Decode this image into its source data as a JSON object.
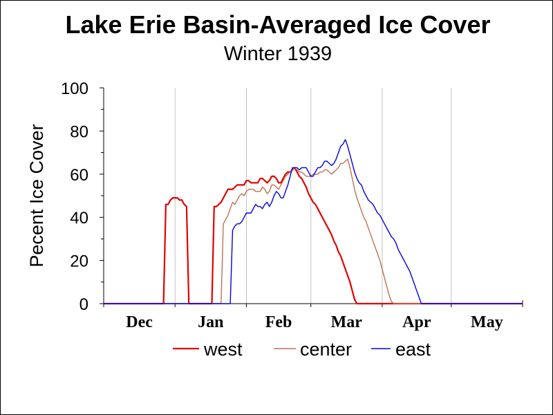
{
  "chart_data": {
    "type": "line",
    "title": "Lake Erie Basin-Averaged Ice Cover",
    "subtitle": "Winter 1939",
    "ylabel": "Pecent Ice Cover",
    "xlabel": "",
    "ylim": [
      0,
      100
    ],
    "yticks": [
      "0",
      "20",
      "40",
      "60",
      "80",
      "100"
    ],
    "months": [
      "Dec",
      "Jan",
      "Feb",
      "Mar",
      "Apr",
      "May"
    ],
    "xlim": [
      0,
      182
    ],
    "grid": "vertical",
    "legend_position": "bottom",
    "series": [
      {
        "name": "west",
        "color": "#e00000",
        "x": [
          0,
          26,
          27,
          28,
          29,
          30,
          31,
          32,
          33,
          34,
          35,
          36,
          37,
          38,
          38.5,
          39,
          40,
          41,
          42,
          43,
          44,
          45,
          46,
          47,
          48,
          49,
          50,
          51,
          52,
          53,
          54,
          55,
          56,
          57,
          58,
          59,
          60,
          61,
          62,
          63,
          64,
          65,
          66,
          67,
          68,
          69,
          70,
          71,
          72,
          73,
          74,
          75,
          76,
          77,
          78,
          79,
          80,
          81,
          82,
          83,
          84,
          85,
          86,
          87,
          88,
          89,
          90,
          91,
          92,
          93,
          94,
          95,
          96,
          97,
          98,
          99,
          100,
          101,
          102,
          103,
          104,
          105,
          106,
          107,
          108,
          109,
          110,
          111,
          112,
          113,
          114,
          115,
          116,
          117,
          118,
          119,
          120,
          121,
          122,
          123,
          124,
          125,
          130,
          150,
          182
        ],
        "y": [
          0,
          0,
          46,
          46,
          48,
          49,
          49,
          49,
          48,
          48,
          46,
          45,
          0,
          0,
          0,
          0,
          0,
          0,
          0,
          0,
          0,
          0,
          0,
          0,
          45,
          45,
          46,
          47,
          49,
          51,
          53,
          53,
          53,
          54,
          55,
          55,
          55,
          55,
          57,
          57,
          56,
          56,
          56,
          56,
          58,
          58,
          57,
          56,
          57,
          59,
          59,
          58,
          56,
          56,
          58,
          60,
          61,
          61,
          62,
          63,
          61,
          59,
          58,
          56,
          54,
          51,
          49,
          47,
          46,
          44,
          42,
          40,
          38,
          36,
          34,
          32,
          29,
          27,
          24,
          22,
          19,
          16,
          13,
          10,
          6,
          2,
          0,
          0,
          0,
          0,
          0,
          0,
          0,
          0,
          0,
          0,
          0,
          0,
          0,
          0,
          0,
          0,
          0,
          0,
          0
        ]
      },
      {
        "name": "center",
        "color": "#c07050",
        "x": [
          0,
          51,
          52,
          53,
          54,
          55,
          56,
          57,
          58,
          59,
          60,
          61,
          62,
          63,
          64,
          65,
          66,
          67,
          68,
          69,
          70,
          71,
          72,
          73,
          74,
          75,
          76,
          77,
          78,
          79,
          80,
          81,
          82,
          83,
          84,
          85,
          86,
          87,
          88,
          89,
          90,
          91,
          92,
          93,
          94,
          95,
          96,
          97,
          98,
          99,
          100,
          101,
          102,
          103,
          104,
          105,
          106,
          107,
          108,
          109,
          110,
          111,
          112,
          113,
          114,
          115,
          116,
          117,
          118,
          119,
          120,
          121,
          122,
          123,
          124,
          125,
          126,
          127,
          128,
          129,
          130,
          131,
          132,
          133,
          134,
          135,
          136,
          137,
          140,
          150,
          182
        ],
        "y": [
          0,
          0,
          37,
          39,
          41,
          44,
          47,
          46,
          48,
          50,
          51,
          50,
          52,
          53,
          53,
          53,
          52,
          52,
          52,
          54,
          53,
          51,
          52,
          55,
          55,
          54,
          53,
          55,
          57,
          59,
          60,
          61,
          62,
          63,
          62,
          61,
          61,
          60,
          59,
          59,
          59,
          60,
          60,
          60,
          61,
          61,
          62,
          62,
          61,
          60,
          61,
          62,
          63,
          65,
          65,
          66,
          67,
          63,
          58,
          53,
          49,
          46,
          43,
          40,
          38,
          35,
          32,
          29,
          26,
          23,
          20,
          16,
          12,
          8,
          4,
          1,
          0,
          0,
          0,
          0,
          0,
          0,
          0,
          0,
          0,
          0,
          0,
          0,
          0,
          0,
          0
        ]
      },
      {
        "name": "east",
        "color": "#0000e0",
        "x": [
          0,
          55,
          56,
          57,
          58,
          59,
          60,
          61,
          62,
          63,
          64,
          65,
          66,
          67,
          68,
          69,
          70,
          71,
          72,
          73,
          74,
          75,
          76,
          77,
          78,
          79,
          80,
          81,
          82,
          83,
          84,
          85,
          86,
          87,
          88,
          89,
          90,
          91,
          92,
          93,
          94,
          95,
          96,
          97,
          98,
          99,
          100,
          101,
          102,
          103,
          104,
          105,
          106,
          107,
          108,
          109,
          110,
          111,
          112,
          113,
          114,
          115,
          116,
          117,
          118,
          119,
          120,
          121,
          122,
          123,
          124,
          125,
          126,
          127,
          128,
          129,
          130,
          131,
          132,
          133,
          134,
          135,
          136,
          137,
          138,
          139,
          140,
          141,
          142,
          143,
          144,
          145,
          146,
          147,
          148,
          149,
          150,
          151,
          160,
          182
        ],
        "y": [
          0,
          0,
          34,
          36,
          37,
          37,
          38,
          40,
          42,
          42,
          42,
          44,
          46,
          45,
          45,
          44,
          46,
          47,
          45,
          47,
          50,
          52,
          51,
          49,
          49,
          52,
          55,
          59,
          63,
          63,
          63,
          62,
          63,
          63,
          63,
          61,
          59,
          59,
          61,
          63,
          63,
          64,
          66,
          66,
          65,
          64,
          65,
          67,
          70,
          73,
          74,
          76,
          73,
          69,
          65,
          61,
          58,
          56,
          55,
          52,
          50,
          48,
          47,
          46,
          44,
          42,
          41,
          39,
          37,
          35,
          33,
          31,
          30,
          28,
          25,
          23,
          21,
          19,
          17,
          15,
          12,
          9,
          6,
          3,
          0,
          0,
          0,
          0,
          0,
          0,
          0,
          0,
          0,
          0,
          0,
          0,
          0,
          0,
          0,
          0
        ]
      }
    ]
  }
}
